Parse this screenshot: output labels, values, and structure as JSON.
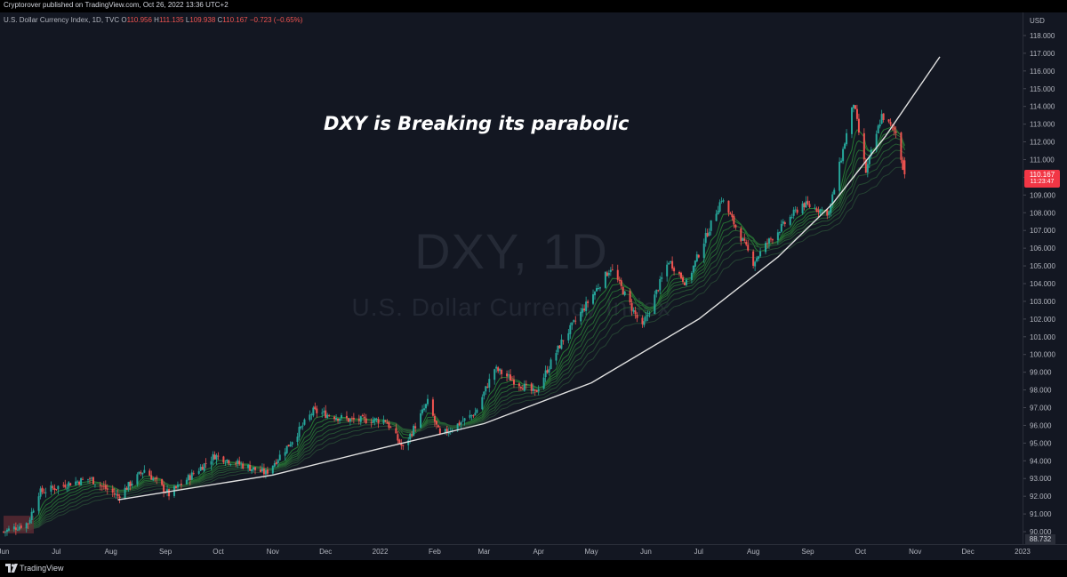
{
  "header": {
    "publisher_line": "Cryptorover published on TradingView.com, Oct 26, 2022 13:36 UTC+2"
  },
  "legend": {
    "symbol": "U.S. Dollar Currency Index, 1D, TVC",
    "o_key": "O",
    "o_val": "110.956",
    "h_key": "H",
    "h_val": "111.135",
    "l_key": "L",
    "l_val": "109.938",
    "c_key": "C",
    "c_val": "110.167",
    "change": "−0.723 (−0.65%)"
  },
  "watermark": {
    "line1": "DXY, 1D",
    "line2": "U.S. Dollar Currency Index"
  },
  "annotation": "DXY is Breaking its parabolic",
  "price_axis": {
    "currency": "USD",
    "last_price": "110.167",
    "countdown": "11:23:47",
    "low_label": "88.732"
  },
  "footer": {
    "brand": "TradingView"
  },
  "colors": {
    "background": "#131722",
    "up": "#26a69a",
    "down": "#ef5350",
    "curve": "#e0e0e0",
    "ribbon": "#2e7d32"
  },
  "chart_data": {
    "type": "candlestick",
    "symbol": "DXY",
    "interval": "1D",
    "ylim": [
      89.5,
      118.5
    ],
    "y_ticks": [
      90,
      91,
      92,
      93,
      94,
      95,
      96,
      97,
      98,
      99,
      100,
      101,
      102,
      103,
      104,
      105,
      106,
      107,
      108,
      109,
      110,
      111,
      112,
      113,
      114,
      115,
      116,
      117,
      118
    ],
    "y_tick_labels": [
      "90.000",
      "91.000",
      "92.000",
      "93.000",
      "94.000",
      "95.000",
      "96.000",
      "97.000",
      "98.000",
      "99.000",
      "100.000",
      "101.000",
      "102.000",
      "103.000",
      "104.000",
      "105.000",
      "106.000",
      "107.000",
      "108.000",
      "109.000",
      "110.000",
      "111.000",
      "112.000",
      "113.000",
      "114.000",
      "115.000",
      "116.000",
      "117.000",
      "118.000"
    ],
    "x_range": [
      "2021-06-01",
      "2022-12-31"
    ],
    "x_ticks": [
      {
        "label": "Jun",
        "date": "2021-06-01"
      },
      {
        "label": "Jul",
        "date": "2021-07-01"
      },
      {
        "label": "Aug",
        "date": "2021-08-01"
      },
      {
        "label": "Sep",
        "date": "2021-09-01"
      },
      {
        "label": "Oct",
        "date": "2021-10-01"
      },
      {
        "label": "Nov",
        "date": "2021-11-01"
      },
      {
        "label": "Dec",
        "date": "2021-12-01"
      },
      {
        "label": "2022",
        "date": "2022-01-01"
      },
      {
        "label": "Feb",
        "date": "2022-02-01"
      },
      {
        "label": "Mar",
        "date": "2022-03-01"
      },
      {
        "label": "Apr",
        "date": "2022-04-01"
      },
      {
        "label": "May",
        "date": "2022-05-01"
      },
      {
        "label": "Jun",
        "date": "2022-06-01"
      },
      {
        "label": "Jul",
        "date": "2022-07-01"
      },
      {
        "label": "Aug",
        "date": "2022-08-01"
      },
      {
        "label": "Sep",
        "date": "2022-09-01"
      },
      {
        "label": "Oct",
        "date": "2022-10-01"
      },
      {
        "label": "Nov",
        "date": "2022-11-01"
      },
      {
        "label": "Dec",
        "date": "2022-12-01"
      },
      {
        "label": "2023",
        "date": "2023-01-01"
      }
    ],
    "price_path": [
      [
        "2021-06-01",
        90.0
      ],
      [
        "2021-06-15",
        90.5
      ],
      [
        "2021-06-21",
        92.2
      ],
      [
        "2021-07-07",
        92.7
      ],
      [
        "2021-07-20",
        93.0
      ],
      [
        "2021-08-05",
        92.0
      ],
      [
        "2021-08-20",
        93.5
      ],
      [
        "2021-09-03",
        92.1
      ],
      [
        "2021-09-29",
        94.3
      ],
      [
        "2021-10-28",
        93.3
      ],
      [
        "2021-11-10",
        94.9
      ],
      [
        "2021-11-24",
        96.8
      ],
      [
        "2021-12-15",
        96.3
      ],
      [
        "2022-01-04",
        96.3
      ],
      [
        "2022-01-14",
        94.7
      ],
      [
        "2022-01-28",
        97.3
      ],
      [
        "2022-02-04",
        95.4
      ],
      [
        "2022-02-24",
        96.7
      ],
      [
        "2022-03-07",
        99.2
      ],
      [
        "2022-03-30",
        97.8
      ],
      [
        "2022-04-14",
        100.7
      ],
      [
        "2022-05-12",
        104.9
      ],
      [
        "2022-05-30",
        101.5
      ],
      [
        "2022-06-14",
        105.3
      ],
      [
        "2022-06-24",
        104.0
      ],
      [
        "2022-07-14",
        108.8
      ],
      [
        "2022-08-01",
        105.2
      ],
      [
        "2022-08-09",
        106.3
      ],
      [
        "2022-08-29",
        108.5
      ],
      [
        "2022-09-13",
        108.0
      ],
      [
        "2022-09-27",
        114.2
      ],
      [
        "2022-10-04",
        110.3
      ],
      [
        "2022-10-13",
        113.5
      ],
      [
        "2022-10-21",
        112.5
      ],
      [
        "2022-10-26",
        110.167
      ]
    ],
    "parabolic_curve": {
      "label": "DXY is Breaking its parabolic",
      "points": [
        [
          "2021-08-05",
          91.8
        ],
        [
          "2021-11-01",
          93.2
        ],
        [
          "2022-01-01",
          94.7
        ],
        [
          "2022-03-01",
          96.1
        ],
        [
          "2022-05-01",
          98.4
        ],
        [
          "2022-07-01",
          102.0
        ],
        [
          "2022-08-15",
          105.5
        ],
        [
          "2022-09-15",
          108.5
        ],
        [
          "2022-10-15",
          112.3
        ],
        [
          "2022-11-15",
          116.8
        ]
      ]
    },
    "last": {
      "open": 110.956,
      "high": 111.135,
      "low": 109.938,
      "close": 110.167,
      "change": -0.723,
      "change_pct": -0.65
    },
    "grid": false
  }
}
